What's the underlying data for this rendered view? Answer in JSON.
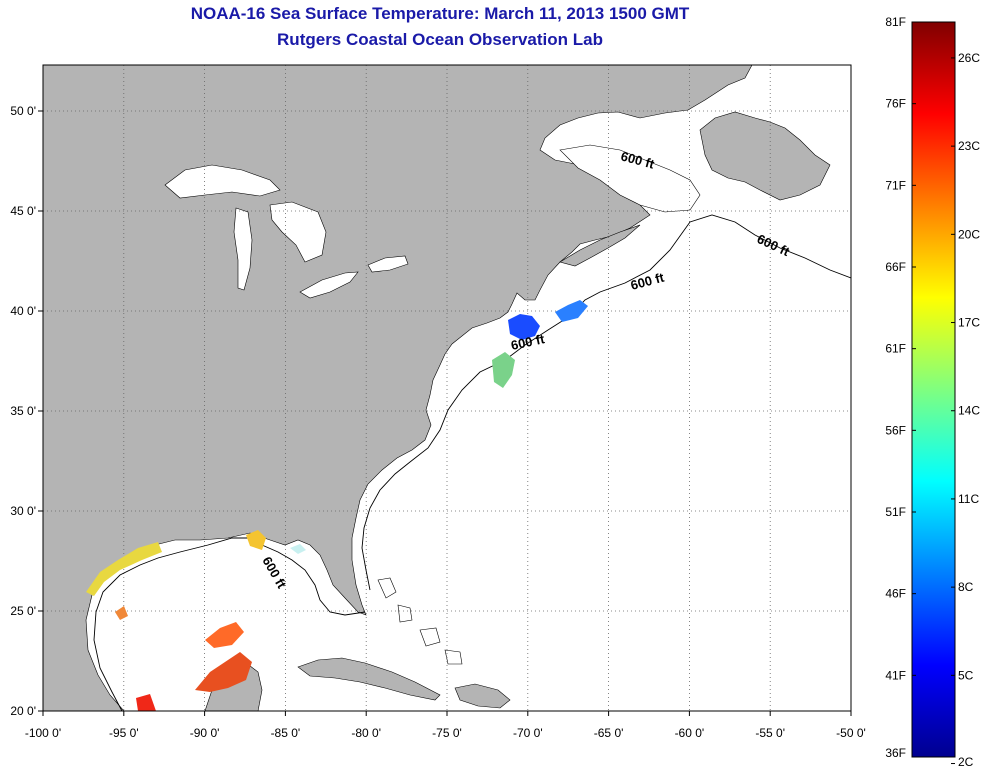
{
  "title_line1": "NOAA-16 Sea Surface Temperature:  March 11, 2013 1500 GMT",
  "title_line2": "Rutgers Coastal Ocean Observation Lab",
  "map": {
    "lon_range": [
      -100,
      -50
    ],
    "lat_range": [
      20,
      52.3
    ],
    "lon_ticks": [
      {
        "value": -100,
        "label": "-100 0'"
      },
      {
        "value": -95,
        "label": "-95 0'"
      },
      {
        "value": -90,
        "label": "-90 0'"
      },
      {
        "value": -85,
        "label": "-85 0'"
      },
      {
        "value": -80,
        "label": "-80 0'"
      },
      {
        "value": -75,
        "label": "-75 0'"
      },
      {
        "value": -70,
        "label": "-70 0'"
      },
      {
        "value": -65,
        "label": "-65 0'"
      },
      {
        "value": -60,
        "label": "-60 0'"
      },
      {
        "value": -55,
        "label": "-55 0'"
      },
      {
        "value": -50,
        "label": "-50 0'"
      }
    ],
    "lat_ticks": [
      {
        "value": 20,
        "label": "20 0'"
      },
      {
        "value": 25,
        "label": "25 0'"
      },
      {
        "value": 30,
        "label": "30 0'"
      },
      {
        "value": 35,
        "label": "35 0'"
      },
      {
        "value": 40,
        "label": "40 0'"
      },
      {
        "value": 45,
        "label": "45 0'"
      },
      {
        "value": 50,
        "label": "50 0'"
      }
    ],
    "grid": "dotted",
    "land_color": "#b4b4b4",
    "ocean_color": "#ffffff",
    "contour_labels": [
      "600 ft",
      "600 ft",
      "600 ft",
      "600 ft",
      "600 ft"
    ]
  },
  "colorbar": {
    "f_labels": [
      "81F",
      "76F",
      "71F",
      "66F",
      "61F",
      "56F",
      "51F",
      "46F",
      "41F",
      "36F"
    ],
    "c_labels": [
      "26C",
      "23C",
      "20C",
      "17C",
      "14C",
      "11C",
      "8C",
      "5C",
      "2C"
    ]
  }
}
